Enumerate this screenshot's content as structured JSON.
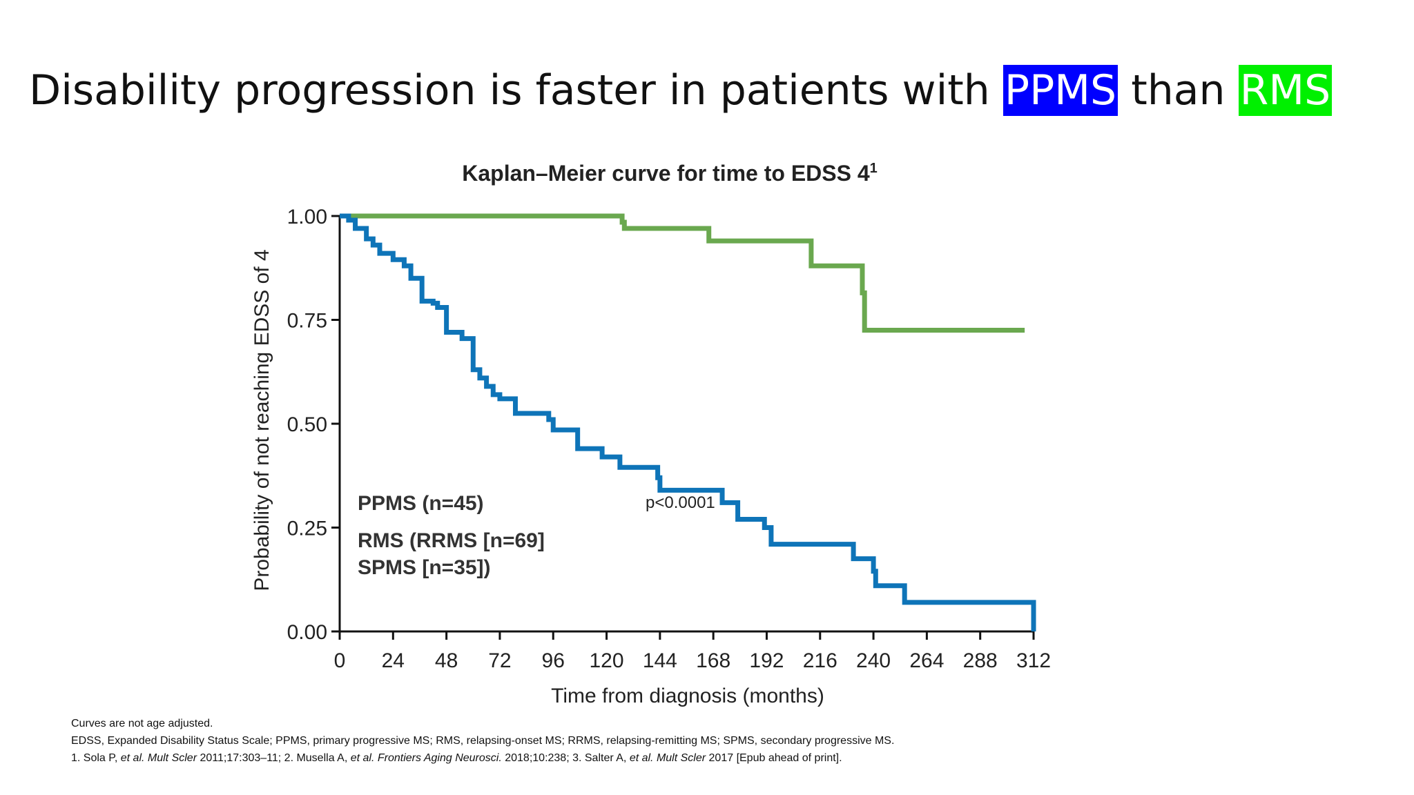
{
  "title": {
    "prefix": "Disability progression is faster in patients with ",
    "ppms": "PPMS",
    "middle": " than ",
    "rms": "RMS"
  },
  "colors": {
    "ppms_highlight": "#0000ff",
    "rms_highlight": "#00f000",
    "ppms_curve": "#0e74b8",
    "rms_curve": "#6aa84f"
  },
  "chart_data": {
    "type": "line",
    "title": "Kaplan–Meier curve for time to EDSS 4",
    "title_superscript": "1",
    "xlabel": "Time from diagnosis (months)",
    "ylabel": "Probability of not reaching EDSS of 4",
    "xlim": [
      0,
      312
    ],
    "ylim": [
      0,
      1
    ],
    "xticks": [
      "0",
      "24",
      "48",
      "72",
      "96",
      "120",
      "144",
      "168",
      "192",
      "216",
      "240",
      "264",
      "288",
      "312"
    ],
    "yticks": [
      "0.00",
      "0.25",
      "0.50",
      "0.75",
      "1.00"
    ],
    "grid": false,
    "labels": {
      "ppms": "PPMS (n=45)",
      "rms_line1": "RMS (RRMS [n=69]",
      "rms_line2": "SPMS [n=35])",
      "pvalue": "p<0.0001"
    },
    "series": [
      {
        "key": "ppms",
        "step": true,
        "x": [
          0,
          4,
          7,
          12,
          15,
          18,
          24,
          29,
          32,
          37,
          42,
          44,
          48,
          55,
          60,
          63,
          66,
          69,
          72,
          79,
          94,
          96,
          107,
          118,
          126,
          143,
          144,
          172,
          175,
          179,
          191,
          194,
          231,
          240,
          241,
          254,
          311,
          312
        ],
        "y": [
          1.0,
          0.99,
          0.97,
          0.945,
          0.93,
          0.91,
          0.895,
          0.88,
          0.85,
          0.795,
          0.79,
          0.78,
          0.72,
          0.705,
          0.63,
          0.61,
          0.59,
          0.57,
          0.56,
          0.525,
          0.51,
          0.485,
          0.44,
          0.42,
          0.395,
          0.37,
          0.34,
          0.31,
          0.31,
          0.27,
          0.25,
          0.21,
          0.175,
          0.145,
          0.11,
          0.07,
          0.07,
          0.0
        ]
      },
      {
        "key": "rms",
        "step": true,
        "x": [
          0,
          126,
          127,
          128,
          166,
          212,
          235,
          236,
          308
        ],
        "y": [
          1.0,
          1.0,
          0.985,
          0.97,
          0.94,
          0.88,
          0.815,
          0.725,
          0.725
        ]
      }
    ]
  },
  "footnotes": {
    "line1": "Curves are not age adjusted.",
    "line2": "EDSS, Expanded Disability Status Scale; PPMS, primary progressive MS; RMS, relapsing-onset MS; RRMS, relapsing-remitting MS; SPMS, secondary progressive MS.",
    "line3": {
      "a": "1. Sola P, ",
      "b": "et al. Mult Scler",
      "c": " 2011;17:303–11; 2. Musella A, ",
      "d": "et al. Frontiers Aging Neurosci.",
      "e": " 2018;10:238; 3. Salter A, ",
      "f": "et al. Mult Scler",
      "g": " 2017 [Epub ahead of print]."
    }
  }
}
